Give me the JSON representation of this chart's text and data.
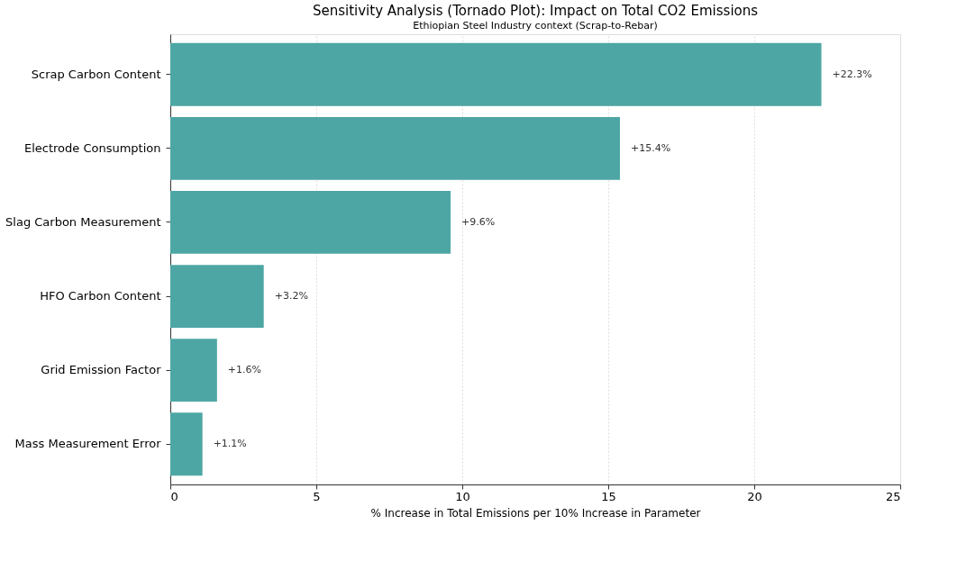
{
  "chart_data": {
    "type": "bar",
    "orientation": "horizontal",
    "title": "Sensitivity Analysis (Tornado Plot): Impact on Total CO2 Emissions",
    "subtitle": "Ethiopian Steel Industry context (Scrap-to-Rebar)",
    "xlabel": "% Increase in Total Emissions per 10% Increase in Parameter",
    "categories": [
      "Scrap Carbon Content",
      "Electrode Consumption",
      "Slag Carbon Measurement",
      "HFO Carbon Content",
      "Grid Emission Factor",
      "Mass Measurement Error"
    ],
    "values": [
      22.3,
      15.4,
      9.6,
      3.2,
      1.6,
      1.1
    ],
    "value_labels": [
      "+22.3%",
      "+15.4%",
      "+9.6%",
      "+3.2%",
      "+1.6%",
      "+1.1%"
    ],
    "color": "#4da6a3",
    "xlim": [
      0,
      25
    ],
    "xticks": [
      0,
      5,
      10,
      15,
      20,
      25
    ],
    "grid": "x"
  }
}
